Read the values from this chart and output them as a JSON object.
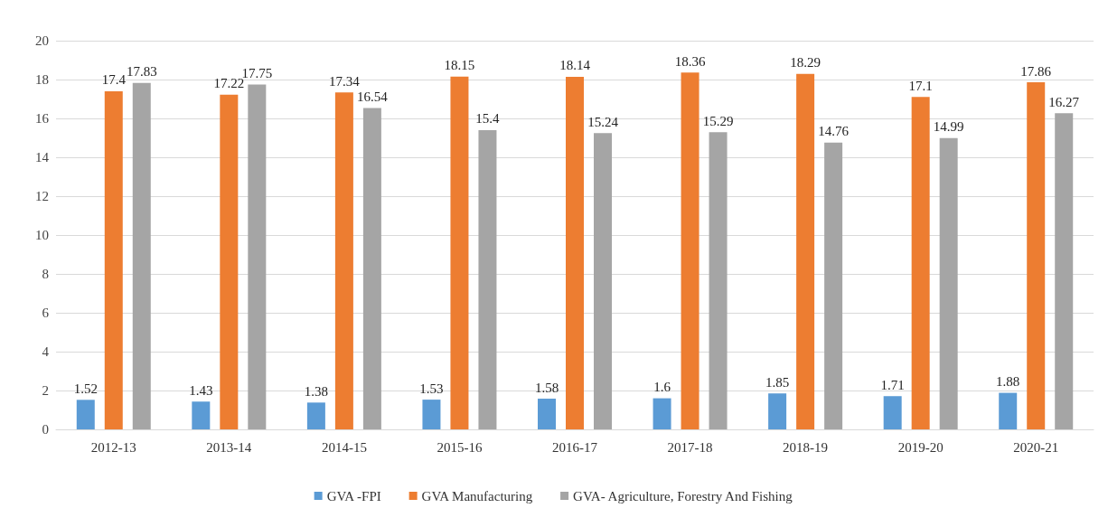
{
  "chart_data": {
    "type": "bar",
    "categories": [
      "2012-13",
      "2013-14",
      "2014-15",
      "2015-16",
      "2016-17",
      "2017-18",
      "2018-19",
      "2019-20",
      "2020-21"
    ],
    "series": [
      {
        "name": "GVA -FPI",
        "color": "#5b9bd5",
        "values": [
          1.52,
          1.43,
          1.38,
          1.53,
          1.58,
          1.6,
          1.85,
          1.71,
          1.88
        ]
      },
      {
        "name": "GVA Manufacturing",
        "color": "#ed7d31",
        "values": [
          17.4,
          17.22,
          17.34,
          18.15,
          18.14,
          18.36,
          18.29,
          17.1,
          17.86
        ]
      },
      {
        "name": "GVA- Agriculture, Forestry And Fishing",
        "color": "#a5a5a5",
        "values": [
          17.83,
          17.75,
          16.54,
          15.4,
          15.24,
          15.29,
          14.76,
          14.99,
          16.27
        ]
      }
    ],
    "ylim": [
      0,
      20
    ],
    "yticks": [
      0,
      2,
      4,
      6,
      8,
      10,
      12,
      14,
      16,
      18,
      20
    ],
    "grid": "y",
    "legend": "bottom",
    "data_labels": true
  }
}
